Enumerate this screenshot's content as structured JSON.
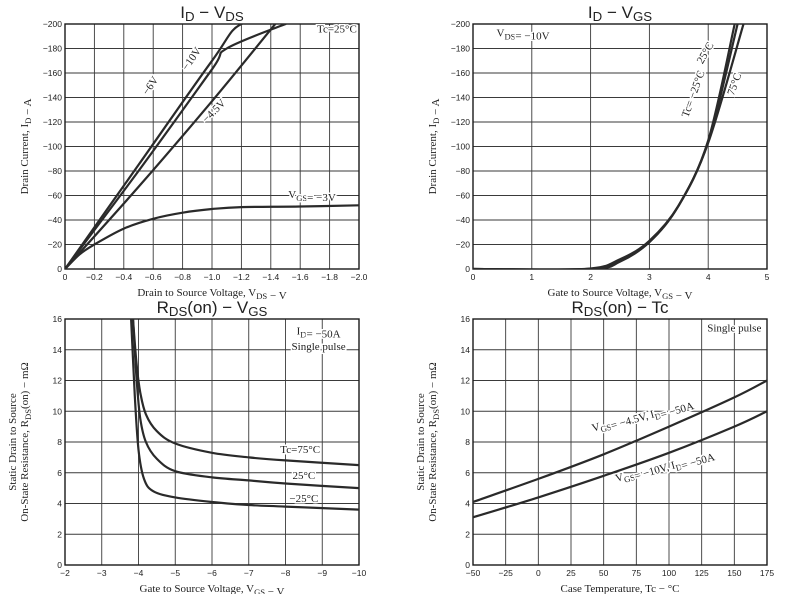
{
  "chart_data": [
    {
      "id": "c1",
      "type": "line",
      "title": "I_D − V_DS",
      "title_main": "I",
      "title_sub1": "D",
      "title_mid": " − V",
      "title_sub2": "DS",
      "xlabel": "Drain to Source Voltage, V_DS − V",
      "ylabel": "Drain Current, I_D − A",
      "xlim": [
        0,
        -2.0
      ],
      "ylim": [
        0,
        -200
      ],
      "xticks": [
        0,
        -0.2,
        -0.4,
        -0.6,
        -0.8,
        -1.0,
        -1.2,
        -1.4,
        -1.6,
        -1.8,
        -2.0
      ],
      "xtick_labels": [
        "0",
        "−0.2",
        "−0.4",
        "−0.6",
        "−0.8",
        "−1.0",
        "−1.2",
        "−1.4",
        "−1.6",
        "−1.8",
        "−2.0"
      ],
      "yticks": [
        0,
        -20,
        -40,
        -60,
        -80,
        -100,
        -120,
        -140,
        -160,
        -180,
        -200
      ],
      "ytick_labels": [
        "0",
        "−20",
        "−40",
        "−60",
        "−80",
        "−100",
        "−120",
        "−140",
        "−160",
        "−180",
        "−200"
      ],
      "annotations": [
        {
          "text": "Tc=25°C",
          "x": -1.85,
          "y": -193,
          "anchor": "middle",
          "rot": 0
        },
        {
          "text": "−10V",
          "x": -0.88,
          "y": -170,
          "anchor": "middle",
          "rot": -55
        },
        {
          "text": "−6V",
          "x": -0.6,
          "y": -148,
          "anchor": "middle",
          "rot": -55
        },
        {
          "text": "−4.5V",
          "x": -1.03,
          "y": -127,
          "anchor": "middle",
          "rot": -45
        },
        {
          "text": "V_GS= −3V",
          "x": -1.68,
          "y": -58,
          "anchor": "middle",
          "rot": 0
        }
      ],
      "series": [
        {
          "name": "−10V",
          "x": [
            0,
            -0.5,
            -1.0,
            -1.2,
            -1.5
          ],
          "y": [
            0,
            -85,
            -170,
            -200,
            -200
          ]
        },
        {
          "name": "−6V",
          "x": [
            0,
            -0.5,
            -1.0,
            -1.1,
            -1.5
          ],
          "y": [
            0,
            -80,
            -163,
            -180,
            -200
          ]
        },
        {
          "name": "−4.5V",
          "x": [
            0,
            -0.5,
            -1.0,
            -1.43
          ],
          "y": [
            0,
            -67,
            -137,
            -200
          ]
        },
        {
          "name": "V_GS=−3V",
          "x": [
            0,
            -0.1,
            -0.2,
            -0.4,
            -0.6,
            -0.8,
            -1.0,
            -1.2,
            -1.6,
            -2.0
          ],
          "y": [
            0,
            -12,
            -20,
            -33,
            -41,
            -46,
            -49,
            -50.5,
            -51,
            -52
          ]
        }
      ]
    },
    {
      "id": "c2",
      "type": "line",
      "title": "I_D − V_GS",
      "title_main": "I",
      "title_sub1": "D",
      "title_mid": " − V",
      "title_sub2": "GS",
      "xlabel": "Gate to Source Voltage, V_GS − V",
      "ylabel": "Drain Current, I_D − A",
      "xlim": [
        0,
        5
      ],
      "ylim": [
        0,
        -200
      ],
      "xticks": [
        0,
        1,
        2,
        3,
        4,
        5
      ],
      "xtick_labels": [
        "0",
        "1",
        "2",
        "3",
        "4",
        "5"
      ],
      "yticks": [
        0,
        -20,
        -40,
        -60,
        -80,
        -100,
        -120,
        -140,
        -160,
        -180,
        -200
      ],
      "ytick_labels": [
        "0",
        "−20",
        "−40",
        "−60",
        "−80",
        "−100",
        "−120",
        "−140",
        "−160",
        "−180",
        "−200"
      ],
      "annotations": [
        {
          "text": "V_DS= −10V",
          "x": 0.85,
          "y": -190,
          "anchor": "middle",
          "rot": 0
        },
        {
          "text": "25°C",
          "x": 4.0,
          "y": -175,
          "anchor": "middle",
          "rot": -60
        },
        {
          "text": "Tc= −25°C",
          "x": 3.8,
          "y": -142,
          "anchor": "middle",
          "rot": -70
        },
        {
          "text": "75°C",
          "x": 4.5,
          "y": -150,
          "anchor": "middle",
          "rot": -70
        }
      ],
      "series": [
        {
          "name": "Tc=−25°C",
          "x": [
            0,
            2.0,
            2.5,
            3.0,
            3.5,
            4.0,
            4.45
          ],
          "y": [
            0,
            0,
            -6,
            -22,
            -52,
            -105,
            -200
          ]
        },
        {
          "name": "Tc=25°C",
          "x": [
            0,
            1.95,
            2.5,
            3.0,
            3.5,
            4.0,
            4.5
          ],
          "y": [
            0,
            0,
            -7,
            -22,
            -52,
            -104,
            -200
          ]
        },
        {
          "name": "Tc=75°C",
          "x": [
            0,
            1.9,
            2.5,
            3.0,
            3.5,
            4.0,
            4.6
          ],
          "y": [
            0,
            0,
            -8,
            -23,
            -52,
            -103,
            -200
          ]
        }
      ]
    },
    {
      "id": "c3",
      "type": "line",
      "title": "R_DS(on) − V_GS",
      "title_main": "R",
      "title_sub1": "DS",
      "title_mid": "(on) − V",
      "title_sub2": "GS",
      "xlabel": "Gate to Source Voltage, V_GS − V",
      "ylabel": "Static Drain to Source On-State Resistance, R_DS(on) − mΩ",
      "ylabel_line1": "Static Drain to Source",
      "ylabel_line2": "On-State Resistance, R_DS(on) − mΩ",
      "xlim": [
        -2,
        -10
      ],
      "ylim": [
        0,
        16
      ],
      "xticks": [
        -2,
        -3,
        -4,
        -5,
        -6,
        -7,
        -8,
        -9,
        -10
      ],
      "xtick_labels": [
        "−2",
        "−3",
        "−4",
        "−5",
        "−6",
        "−7",
        "−8",
        "−9",
        "−10"
      ],
      "yticks": [
        0,
        2,
        4,
        6,
        8,
        10,
        12,
        14,
        16
      ],
      "ytick_labels": [
        "0",
        "2",
        "4",
        "6",
        "8",
        "10",
        "12",
        "14",
        "16"
      ],
      "annotations": [
        {
          "text": "I_D= −50A",
          "x": -8.9,
          "y": 15.0,
          "anchor": "middle",
          "rot": 0
        },
        {
          "text": "Single pulse",
          "x": -8.9,
          "y": 14.0,
          "anchor": "middle",
          "rot": 0
        },
        {
          "text": "Tc=75°C",
          "x": -8.4,
          "y": 7.3,
          "anchor": "middle",
          "rot": 0
        },
        {
          "text": "25°C",
          "x": -8.5,
          "y": 5.6,
          "anchor": "middle",
          "rot": 0
        },
        {
          "text": "−25°C",
          "x": -8.5,
          "y": 4.1,
          "anchor": "middle",
          "rot": 0
        }
      ],
      "series": [
        {
          "name": "Tc=75°C",
          "x": [
            -3.85,
            -3.95,
            -4.05,
            -4.2,
            -4.5,
            -5.0,
            -6.0,
            -7.0,
            -8.0,
            -10.0
          ],
          "y": [
            16,
            13,
            11.2,
            9.8,
            8.7,
            7.9,
            7.3,
            7.0,
            6.8,
            6.5
          ]
        },
        {
          "name": "25°C",
          "x": [
            -3.85,
            -3.95,
            -4.05,
            -4.2,
            -4.5,
            -5.0,
            -6.0,
            -7.0,
            -8.0,
            -10.0
          ],
          "y": [
            16,
            12,
            9.5,
            8.0,
            6.9,
            6.1,
            5.7,
            5.5,
            5.3,
            5.0
          ]
        },
        {
          "name": "−25°C",
          "x": [
            -3.8,
            -3.9,
            -4.0,
            -4.15,
            -4.4,
            -5.0,
            -6.0,
            -7.0,
            -8.0,
            -10.0
          ],
          "y": [
            16,
            11,
            7.5,
            5.6,
            4.8,
            4.4,
            4.1,
            3.9,
            3.8,
            3.6
          ]
        }
      ]
    },
    {
      "id": "c4",
      "type": "line",
      "title": "R_DS(on) − Tc",
      "title_main": "R",
      "title_sub1": "DS",
      "title_mid": "(on) − Tc",
      "title_sub2": "",
      "xlabel": "Case Temperature, Tc − °C",
      "ylabel": "Static Drain to Source On-State Resistance, R_DS(on) − mΩ",
      "ylabel_line1": "Static Drain to Source",
      "ylabel_line2": "On-State Resistance, R_DS(on) − mΩ",
      "xlim": [
        -50,
        175
      ],
      "ylim": [
        0,
        16
      ],
      "xticks": [
        -50,
        -25,
        0,
        25,
        50,
        75,
        100,
        125,
        150,
        175
      ],
      "xtick_labels": [
        "−50",
        "−25",
        "0",
        "25",
        "50",
        "75",
        "100",
        "125",
        "150",
        "175"
      ],
      "yticks": [
        0,
        2,
        4,
        6,
        8,
        10,
        12,
        14,
        16
      ],
      "ytick_labels": [
        "0",
        "2",
        "4",
        "6",
        "8",
        "10",
        "12",
        "14",
        "16"
      ],
      "annotations": [
        {
          "text": "Single pulse",
          "x": 150,
          "y": 15.2,
          "anchor": "middle",
          "rot": 0
        },
        {
          "text": "V_GS= −4.5V, I_D= −50A",
          "x": 80,
          "y": 9.6,
          "anchor": "middle",
          "rot": -16
        },
        {
          "text": "V_GS= −10V, I_D= −50A",
          "x": 97,
          "y": 6.3,
          "anchor": "middle",
          "rot": -16
        }
      ],
      "series": [
        {
          "name": "V_GS=−4.5V, I_D=−50A",
          "x": [
            -50,
            0,
            50,
            100,
            150,
            175
          ],
          "y": [
            4.1,
            5.6,
            7.2,
            9.0,
            10.9,
            12.0
          ]
        },
        {
          "name": "V_GS=−10V, I_D=−50A",
          "x": [
            -50,
            0,
            50,
            100,
            150,
            175
          ],
          "y": [
            3.1,
            4.4,
            5.8,
            7.3,
            9.0,
            10.0
          ]
        }
      ]
    }
  ]
}
